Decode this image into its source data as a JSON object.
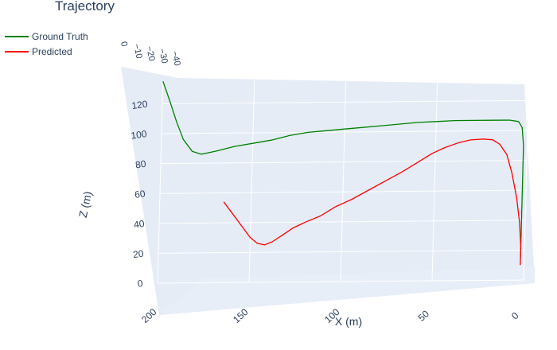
{
  "chart_data": {
    "type": "line",
    "title": "Trajectory",
    "legend": "top-left",
    "xlabel": "X (m)",
    "ylabel": "",
    "zlabel": "Z (m)",
    "x_ticks": [
      "200",
      "150",
      "100",
      "50",
      "0"
    ],
    "y_ticks": [
      "0",
      "−10",
      "−20",
      "−30",
      "−40"
    ],
    "z_ticks": [
      "0",
      "20",
      "40",
      "60",
      "80",
      "100",
      "120"
    ],
    "series": [
      {
        "name": "Ground Truth",
        "color": "#008000",
        "points": [
          {
            "x": 200,
            "z": 135
          },
          {
            "x": 196,
            "z": 122
          },
          {
            "x": 192,
            "z": 108
          },
          {
            "x": 188,
            "z": 96
          },
          {
            "x": 183,
            "z": 88
          },
          {
            "x": 178,
            "z": 86
          },
          {
            "x": 170,
            "z": 88
          },
          {
            "x": 160,
            "z": 91
          },
          {
            "x": 150,
            "z": 93
          },
          {
            "x": 140,
            "z": 95
          },
          {
            "x": 130,
            "z": 98
          },
          {
            "x": 120,
            "z": 100
          },
          {
            "x": 110,
            "z": 101
          },
          {
            "x": 100,
            "z": 102
          },
          {
            "x": 90,
            "z": 103
          },
          {
            "x": 80,
            "z": 104
          },
          {
            "x": 70,
            "z": 105
          },
          {
            "x": 60,
            "z": 106
          },
          {
            "x": 50,
            "z": 106.5
          },
          {
            "x": 40,
            "z": 107
          },
          {
            "x": 30,
            "z": 107
          },
          {
            "x": 20,
            "z": 107
          },
          {
            "x": 10,
            "z": 107
          },
          {
            "x": 5,
            "z": 106
          },
          {
            "x": 3,
            "z": 102
          },
          {
            "x": 2,
            "z": 90
          },
          {
            "x": 2,
            "z": 70
          },
          {
            "x": 2,
            "z": 50
          },
          {
            "x": 2,
            "z": 30
          },
          {
            "x": 2,
            "z": 15
          }
        ]
      },
      {
        "name": "Predicted",
        "color": "#ff0000",
        "points": [
          {
            "x": 165,
            "z": 54
          },
          {
            "x": 160,
            "z": 46
          },
          {
            "x": 155,
            "z": 38
          },
          {
            "x": 150,
            "z": 30
          },
          {
            "x": 146,
            "z": 26
          },
          {
            "x": 142,
            "z": 25
          },
          {
            "x": 138,
            "z": 27
          },
          {
            "x": 133,
            "z": 31
          },
          {
            "x": 127,
            "z": 36
          },
          {
            "x": 120,
            "z": 40
          },
          {
            "x": 112,
            "z": 44
          },
          {
            "x": 104,
            "z": 50
          },
          {
            "x": 95,
            "z": 55
          },
          {
            "x": 86,
            "z": 61
          },
          {
            "x": 77,
            "z": 67
          },
          {
            "x": 68,
            "z": 73
          },
          {
            "x": 60,
            "z": 79
          },
          {
            "x": 52,
            "z": 85
          },
          {
            "x": 45,
            "z": 89
          },
          {
            "x": 38,
            "z": 92
          },
          {
            "x": 31,
            "z": 94
          },
          {
            "x": 24,
            "z": 94.5
          },
          {
            "x": 19,
            "z": 94
          },
          {
            "x": 15,
            "z": 91
          },
          {
            "x": 11,
            "z": 84
          },
          {
            "x": 8,
            "z": 72
          },
          {
            "x": 5,
            "z": 55
          },
          {
            "x": 3,
            "z": 38
          },
          {
            "x": 2,
            "z": 22
          },
          {
            "x": 2,
            "z": 10
          }
        ]
      }
    ]
  }
}
